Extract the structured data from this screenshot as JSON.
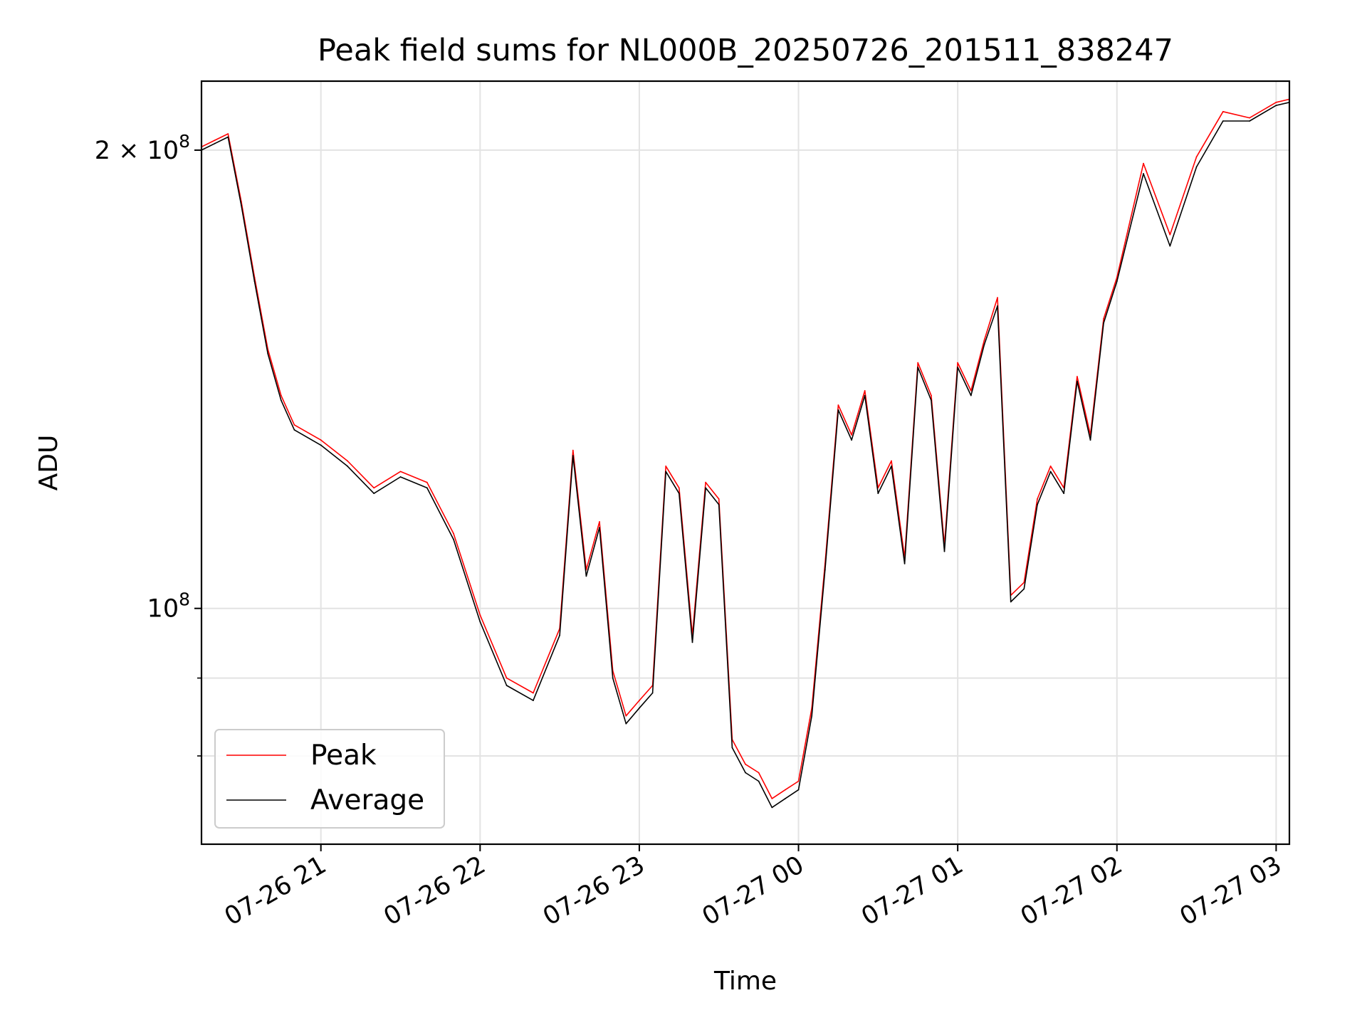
{
  "chart_data": {
    "type": "line",
    "title": "Peak field sums for NL000B_20250726_201511_838247",
    "xlabel": "Time",
    "ylabel": "ADU",
    "y_scale": "log",
    "ylim": [
      70000000,
      222000000
    ],
    "xlim": [
      "2025-07-26 20:15",
      "2025-07-27 03:05"
    ],
    "grid": true,
    "legend_position": "lower-left",
    "x_ticks": [
      {
        "t": "2025-07-26 21:00",
        "label": "07-26 21"
      },
      {
        "t": "2025-07-26 22:00",
        "label": "07-26 22"
      },
      {
        "t": "2025-07-26 23:00",
        "label": "07-26 23"
      },
      {
        "t": "2025-07-27 00:00",
        "label": "07-27 00"
      },
      {
        "t": "2025-07-27 01:00",
        "label": "07-27 01"
      },
      {
        "t": "2025-07-27 02:00",
        "label": "07-27 02"
      },
      {
        "t": "2025-07-27 03:00",
        "label": "07-27 03"
      }
    ],
    "y_ticks_major": [
      {
        "v": 100000000,
        "base": "10",
        "exp": "8",
        "mant": ""
      },
      {
        "v": 200000000,
        "base": "10",
        "exp": "8",
        "mant": "2 × "
      }
    ],
    "y_ticks_minor": [
      80000000,
      90000000
    ],
    "x": [
      "2025-07-26 20:15",
      "2025-07-26 20:20",
      "2025-07-26 20:25",
      "2025-07-26 20:30",
      "2025-07-26 20:35",
      "2025-07-26 20:40",
      "2025-07-26 20:45",
      "2025-07-26 20:50",
      "2025-07-26 21:00",
      "2025-07-26 21:10",
      "2025-07-26 21:20",
      "2025-07-26 21:30",
      "2025-07-26 21:40",
      "2025-07-26 21:50",
      "2025-07-26 22:00",
      "2025-07-26 22:10",
      "2025-07-26 22:20",
      "2025-07-26 22:30",
      "2025-07-26 22:35",
      "2025-07-26 22:40",
      "2025-07-26 22:45",
      "2025-07-26 22:50",
      "2025-07-26 22:55",
      "2025-07-26 23:00",
      "2025-07-26 23:05",
      "2025-07-26 23:10",
      "2025-07-26 23:15",
      "2025-07-26 23:20",
      "2025-07-26 23:25",
      "2025-07-26 23:30",
      "2025-07-26 23:35",
      "2025-07-26 23:40",
      "2025-07-26 23:45",
      "2025-07-26 23:50",
      "2025-07-26 23:55",
      "2025-07-27 00:00",
      "2025-07-27 00:05",
      "2025-07-27 00:10",
      "2025-07-27 00:15",
      "2025-07-27 00:20",
      "2025-07-27 00:25",
      "2025-07-27 00:30",
      "2025-07-27 00:35",
      "2025-07-27 00:40",
      "2025-07-27 00:45",
      "2025-07-27 00:50",
      "2025-07-27 00:55",
      "2025-07-27 01:00",
      "2025-07-27 01:05",
      "2025-07-27 01:10",
      "2025-07-27 01:15",
      "2025-07-27 01:20",
      "2025-07-27 01:25",
      "2025-07-27 01:30",
      "2025-07-27 01:35",
      "2025-07-27 01:40",
      "2025-07-27 01:45",
      "2025-07-27 01:50",
      "2025-07-27 01:55",
      "2025-07-27 02:00",
      "2025-07-27 02:10",
      "2025-07-27 02:20",
      "2025-07-27 02:30",
      "2025-07-27 02:40",
      "2025-07-27 02:50",
      "2025-07-27 03:00",
      "2025-07-27 03:05"
    ],
    "series": [
      {
        "name": "Peak",
        "color": "#ff0000",
        "values": [
          201000000,
          203000000,
          205000000,
          185000000,
          165000000,
          148000000,
          138000000,
          132000000,
          129000000,
          125000000,
          120000000,
          123000000,
          121000000,
          112000000,
          99000000,
          90000000,
          88000000,
          97000000,
          127000000,
          106000000,
          114000000,
          91000000,
          85000000,
          87000000,
          89000000,
          124000000,
          120000000,
          96000000,
          121000000,
          118000000,
          82000000,
          79000000,
          78000000,
          75000000,
          76000000,
          77000000,
          86000000,
          107000000,
          136000000,
          130000000,
          139000000,
          120000000,
          125000000,
          108000000,
          145000000,
          138000000,
          110000000,
          145000000,
          139000000,
          150000000,
          160000000,
          102000000,
          104000000,
          118000000,
          124000000,
          120000000,
          142000000,
          130000000,
          155000000,
          165000000,
          196000000,
          176000000,
          198000000,
          212000000,
          210000000,
          215000000,
          216000000
        ]
      },
      {
        "name": "Average",
        "color": "#000000",
        "values": [
          200000000,
          202000000,
          204000000,
          184000000,
          164000000,
          147000000,
          137000000,
          131000000,
          128000000,
          124000000,
          119000000,
          122000000,
          120000000,
          111000000,
          98000000,
          89000000,
          87000000,
          96000000,
          126000000,
          105000000,
          113000000,
          90000000,
          84000000,
          86000000,
          88000000,
          123000000,
          119000000,
          95000000,
          120000000,
          117000000,
          81000000,
          78000000,
          77000000,
          74000000,
          75000000,
          76000000,
          85000000,
          106000000,
          135000000,
          129000000,
          138000000,
          119000000,
          124000000,
          107000000,
          144000000,
          137000000,
          109000000,
          144000000,
          138000000,
          149000000,
          158000000,
          101000000,
          103000000,
          117000000,
          123000000,
          119000000,
          141000000,
          129000000,
          154000000,
          164000000,
          193000000,
          173000000,
          195000000,
          209000000,
          209000000,
          214000000,
          215000000
        ]
      }
    ]
  }
}
